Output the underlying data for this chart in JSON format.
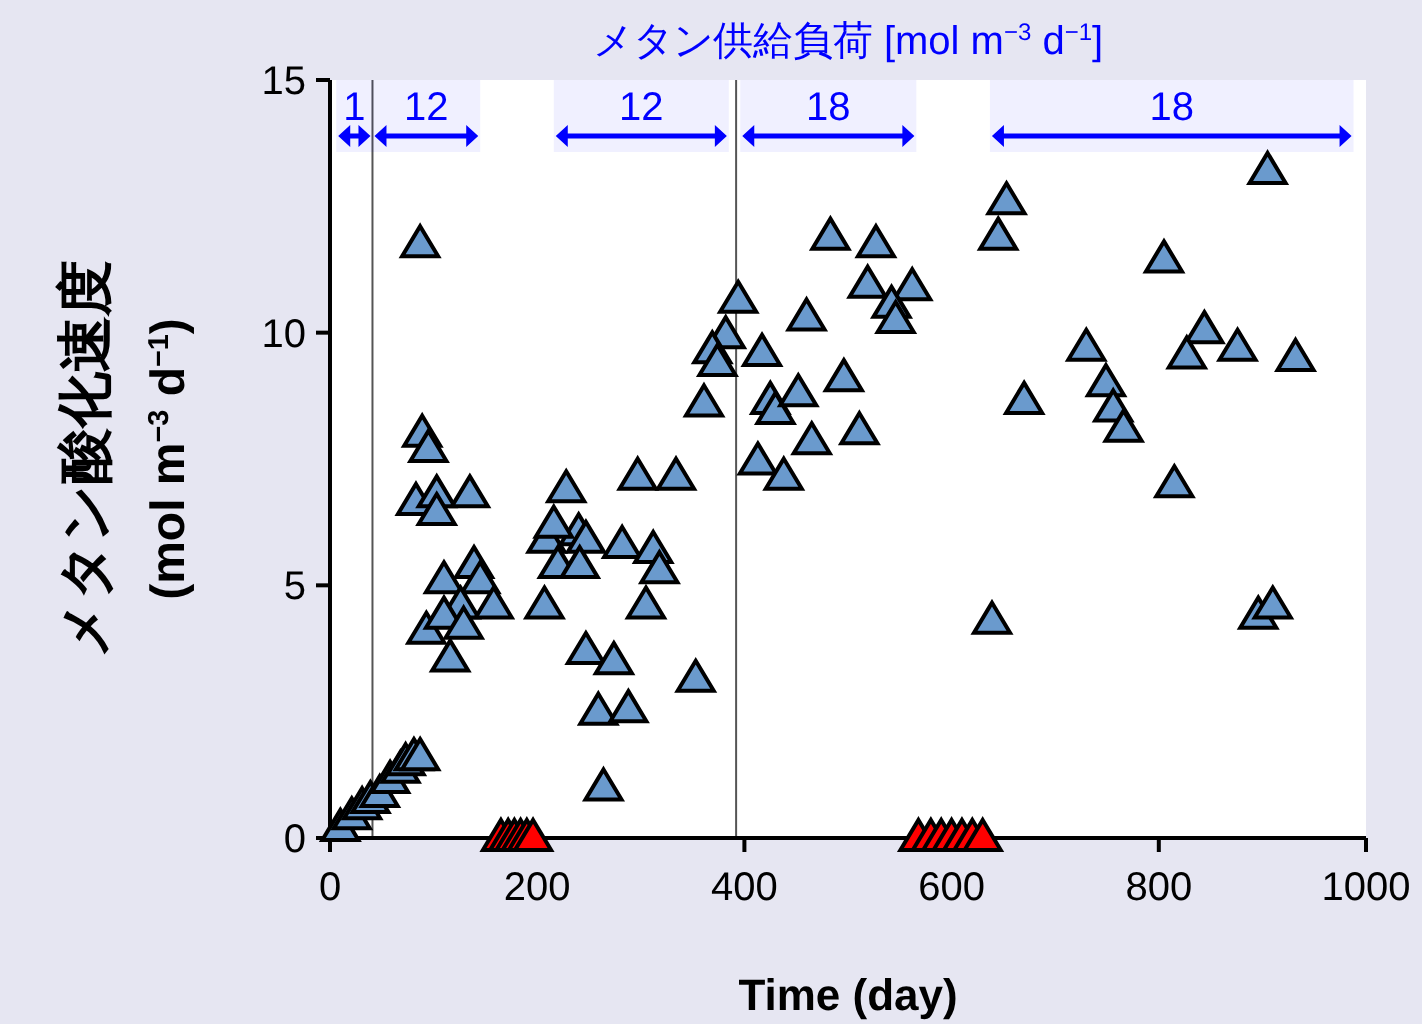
{
  "chart_data": {
    "type": "scatter",
    "title": "メタン供給負荷 [mol m$^{−3}$ d$^{−1}$]",
    "xlabel": "Time (day)",
    "ylabel": "メタン酸化速度\n(mol m$^{−3}$ d$^{−1}$)",
    "xlim": [
      0,
      1000
    ],
    "xticks": [
      0,
      200,
      400,
      600,
      800,
      1000
    ],
    "ylim": [
      0,
      15
    ],
    "yticks": [
      0,
      5,
      10,
      15
    ],
    "marker": "triangle",
    "grid": false,
    "series": [
      {
        "color": "#6a9acd",
        "x": [
          10,
          21,
          31,
          39,
          48,
          58,
          68,
          73,
          81,
          87,
          87,
          89,
          95,
          83,
          103,
          103,
          135,
          110,
          139,
          145,
          126,
          158,
          93,
          110,
          129,
          116,
          228,
          209,
          240,
          247,
          216,
          220,
          241,
          207,
          297,
          334,
          282,
          312,
          318,
          305,
          247,
          274,
          259,
          288,
          264,
          353,
          394,
          382,
          369,
          374,
          361,
          460,
          417,
          425,
          430,
          452,
          465,
          413,
          438,
          483,
          653,
          645,
          527,
          519,
          562,
          542,
          546,
          496,
          511,
          805,
          730,
          749,
          756,
          766,
          844,
          827,
          876,
          932,
          670,
          815,
          639,
          896,
          910,
          905
        ],
        "values": [
          0.2,
          0.43,
          0.63,
          0.75,
          0.87,
          1.15,
          1.35,
          1.5,
          1.6,
          1.6,
          11.75,
          8.0,
          7.7,
          6.65,
          6.8,
          6.45,
          6.8,
          5.1,
          5.4,
          5.1,
          4.6,
          4.6,
          4.1,
          4.4,
          4.2,
          3.55,
          6.9,
          5.9,
          6.05,
          5.9,
          6.2,
          5.4,
          5.4,
          4.6,
          7.15,
          7.15,
          5.8,
          5.7,
          5.3,
          4.6,
          3.7,
          3.5,
          2.5,
          2.55,
          1.0,
          3.15,
          10.65,
          9.95,
          9.65,
          9.4,
          8.6,
          10.3,
          9.6,
          8.65,
          8.45,
          8.8,
          7.85,
          7.45,
          7.15,
          11.9,
          12.6,
          11.9,
          11.75,
          10.95,
          10.9,
          10.55,
          10.25,
          9.1,
          8.05,
          11.45,
          9.7,
          9.0,
          8.5,
          8.1,
          10.05,
          9.55,
          9.7,
          9.5,
          8.65,
          7.0,
          4.3,
          4.4,
          4.6,
          13.2
        ]
      },
      {
        "color": "#ff0000",
        "x": [
          165,
          172,
          178,
          184,
          190,
          196,
          568,
          580,
          590,
          600,
          610,
          620,
          630
        ],
        "values": [
          0,
          0,
          0,
          0,
          0,
          0,
          0,
          0,
          0,
          0,
          0,
          0,
          0
        ]
      }
    ],
    "ref_lines": [
      {
        "axis": "x",
        "value": 41,
        "color": "#555555"
      },
      {
        "axis": "x",
        "value": 392,
        "color": "#555555"
      }
    ],
    "bands": [
      {
        "axis": "x",
        "from": 6,
        "to": 41,
        "label": "1",
        "color": "#0000ff"
      },
      {
        "axis": "x",
        "from": 41,
        "to": 145,
        "label": "12",
        "color": "#0000ff"
      },
      {
        "axis": "x",
        "from": 216,
        "to": 385,
        "label": "12",
        "color": "#0000ff"
      },
      {
        "axis": "x",
        "from": 396,
        "to": 566,
        "label": "18",
        "color": "#0000ff"
      },
      {
        "axis": "x",
        "from": 637,
        "to": 988,
        "label": "18",
        "color": "#0000ff"
      }
    ]
  }
}
